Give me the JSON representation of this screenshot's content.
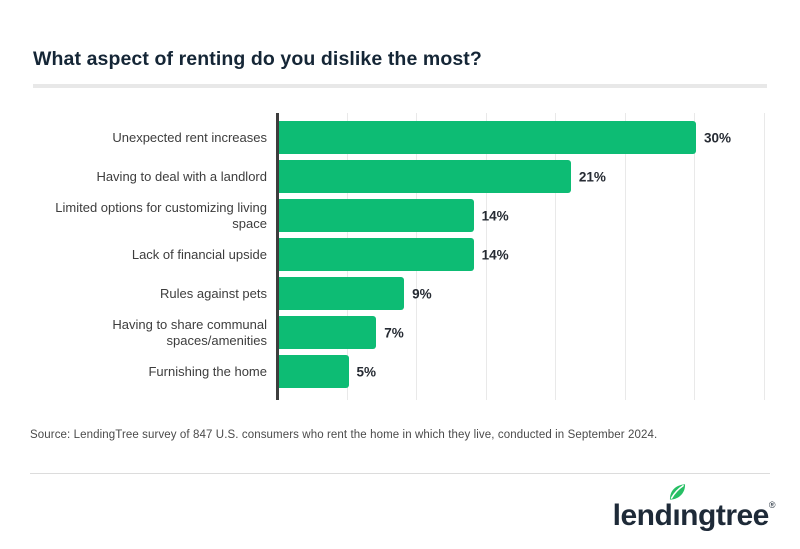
{
  "header": {
    "title": "What aspect of renting do you dislike the most?"
  },
  "chart_data": {
    "type": "bar",
    "orientation": "horizontal",
    "title": "What aspect of renting do you dislike the most?",
    "categories": [
      "Unexpected rent increases",
      "Having to deal with a landlord",
      "Limited options for customizing living\nspace",
      "Lack of financial upside",
      "Rules against pets",
      "Having to share communal\nspaces/amenities",
      "Furnishing the home"
    ],
    "values": [
      30,
      21,
      14,
      14,
      9,
      7,
      5
    ],
    "value_labels": [
      "30%",
      "21%",
      "14%",
      "14%",
      "9%",
      "7%",
      "5%"
    ],
    "xlabel": "",
    "ylabel": "",
    "xlim": [
      0,
      35
    ],
    "gridline_step": 5,
    "grid": true,
    "legend": false,
    "bar_color": "#0dbc74"
  },
  "footer": {
    "source": "Source: LendingTree survey of 847 U.S. consumers who rent the home in which they live, conducted in September 2024.",
    "logo": {
      "part1": "lend",
      "dotless_i": "ı",
      "part2": "ngtree",
      "registered": "®",
      "leaf_color": "#26bf64"
    }
  },
  "colors": {
    "bar_green": "#0dbc74",
    "axis": "#3d3d3d",
    "title_navy": "#152636",
    "logo_navy": "#1e2a38",
    "gridline": "#e9e9e9",
    "divider": "#e8e8e8",
    "source_gray": "#4a4a4a"
  }
}
